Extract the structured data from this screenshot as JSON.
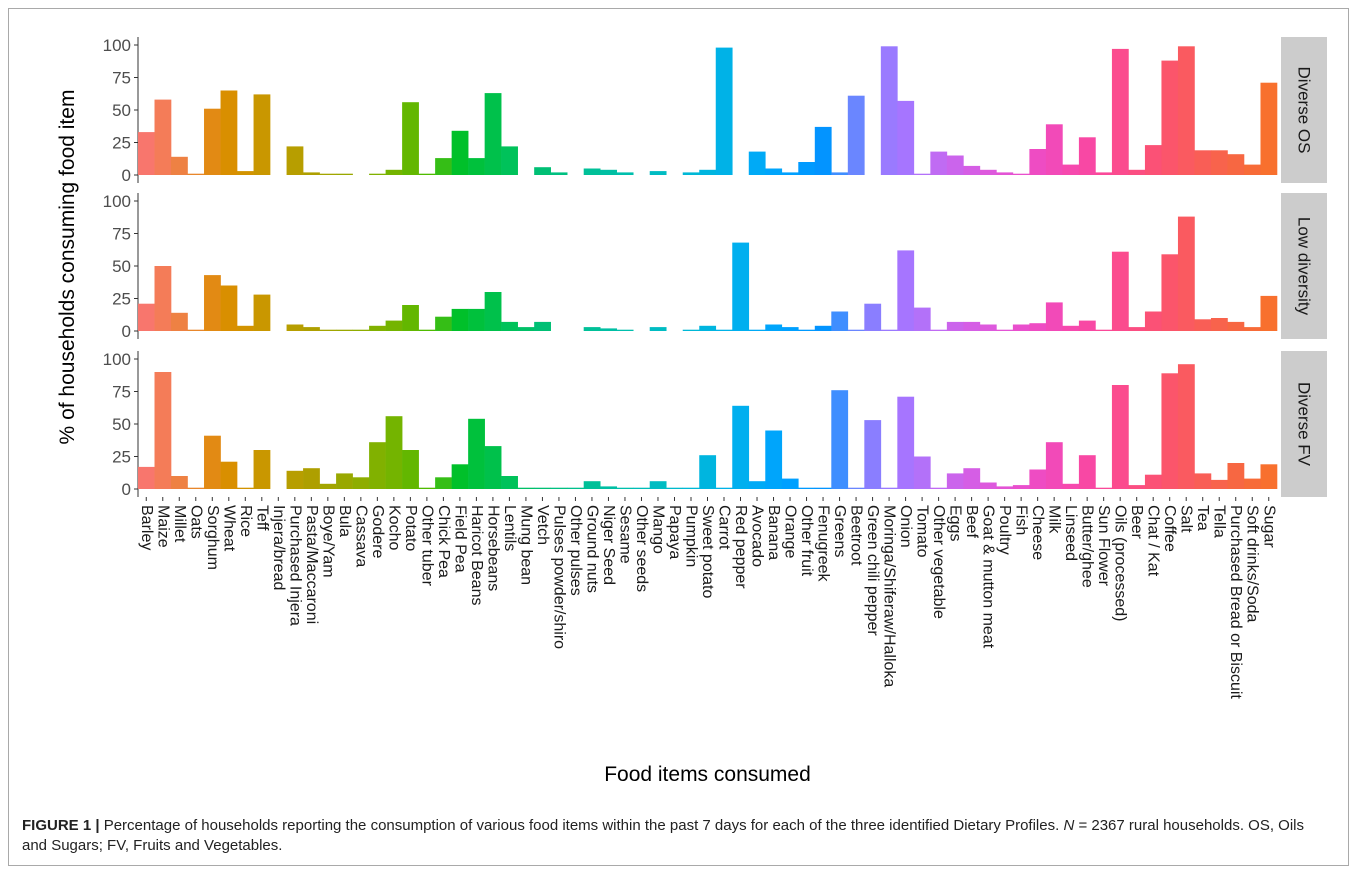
{
  "chart_data": {
    "type": "bar",
    "xlabel": "Food items consumed",
    "ylabel": "% of households consuming food item",
    "ylim": [
      0,
      100
    ],
    "yticks": [
      0,
      25,
      50,
      75,
      100
    ],
    "ytick_labels": [
      "0",
      "25",
      "50",
      "75",
      "100"
    ],
    "categories": [
      "Barley",
      "Maize",
      "Millet",
      "Oats",
      "Sorghum",
      "Wheat",
      "Rice",
      "Teff",
      "Injera/bread",
      "Purchased Injera",
      "Pasta/Maccaroni",
      "Boye/Yam",
      "Bula",
      "Cassava",
      "Godere",
      "Kocho",
      "Potato",
      "Other tuber",
      "Chick Pea",
      "Field Pea",
      "Haricot Beans",
      "Horsebeans",
      "Lentils",
      "Mung bean",
      "Vetch",
      "Pulses powder/shiro",
      "Other pulses",
      "Ground nuts",
      "Niger Seed",
      "Sesame",
      "Other seeds",
      "Mango",
      "Papaya",
      "Pumpkin",
      "Sweet potato",
      "Carrot",
      "Red pepper",
      "Avocado",
      "Banana",
      "Orange",
      "Other fruit",
      "Fenugreek",
      "Greens",
      "Beetroot",
      "Green chili pepper",
      "Moringa/Shiferaw/Halloka",
      "Onion",
      "Tomato",
      "Other vegetable",
      "Eggs",
      "Beef",
      "Goat & mutton meat",
      "Poultry",
      "Fish",
      "Cheese",
      "Milk",
      "Linseed",
      "Butter/ghee",
      "Sun Flower",
      "Oils (processed)",
      "Beer",
      "Chat / Kat",
      "Coffee",
      "Salt",
      "Tea",
      "Tella",
      "Purchased Bread or Biscuit",
      "Soft drinks/Soda",
      "Sugar"
    ],
    "colors": [
      "#f8766d",
      "#f47c58",
      "#ee8143",
      "#e8872c",
      "#e28a14",
      "#d98f00",
      "#d29300",
      "#c99700",
      "#c19a00",
      "#b79e00",
      "#ae9f00",
      "#a3a500",
      "#99a800",
      "#8ead00",
      "#81b100",
      "#74b400",
      "#63b700",
      "#4fbb00",
      "#35be16",
      "#00c02a",
      "#00c13c",
      "#00c14b",
      "#00c25a",
      "#00c067",
      "#00bf74",
      "#00c081",
      "#00c08d",
      "#00c098",
      "#00bfa3",
      "#00bfad",
      "#00bdb8",
      "#00bcc2",
      "#00bacc",
      "#00b8d6",
      "#00b5df",
      "#00b2e7",
      "#00afef",
      "#00aaf6",
      "#00a5fb",
      "#00a0ff",
      "#009aff",
      "#0394ff",
      "#3f8eff",
      "#6a86ff",
      "#8a7eff",
      "#9a7aff",
      "#a675ff",
      "#b371f9",
      "#c06bf3",
      "#cb64ec",
      "#d55ee5",
      "#dd59dd",
      "#e354d5",
      "#e94fcd",
      "#ee4cc3",
      "#f24ab8",
      "#f649ae",
      "#f848a4",
      "#fa4999",
      "#fb4b8e",
      "#fb4e82",
      "#fb5176",
      "#fb556b",
      "#fa5a60",
      "#f95e56",
      "#f8634c",
      "#f76742",
      "#f76b38",
      "#f8702e"
    ],
    "panels": [
      {
        "label": "Diverse OS",
        "values": [
          33,
          58,
          14,
          1,
          51,
          65,
          3,
          62,
          0,
          22,
          2,
          1,
          1,
          0,
          1,
          4,
          56,
          1,
          13,
          34,
          13,
          63,
          22,
          0,
          6,
          2,
          0,
          5,
          4,
          2,
          0,
          3,
          0,
          2,
          4,
          98,
          0,
          18,
          5,
          2,
          10,
          37,
          2,
          61,
          0,
          99,
          57,
          1,
          18,
          15,
          7,
          4,
          2,
          1,
          20,
          39,
          8,
          29,
          2,
          97,
          4,
          23,
          88,
          99,
          19,
          19,
          16,
          8,
          71
        ]
      },
      {
        "label": "Low diversity",
        "values": [
          21,
          50,
          14,
          1,
          43,
          35,
          4,
          28,
          0,
          5,
          3,
          1,
          1,
          1,
          4,
          8,
          20,
          1,
          11,
          17,
          17,
          30,
          7,
          3,
          7,
          0,
          0,
          3,
          2,
          1,
          0,
          3,
          0,
          1,
          4,
          1,
          68,
          1,
          5,
          3,
          1,
          4,
          15,
          1,
          21,
          1,
          62,
          18,
          1,
          7,
          7,
          5,
          1,
          5,
          6,
          22,
          4,
          8,
          1,
          61,
          3,
          15,
          59,
          88,
          9,
          10,
          7,
          3,
          27
        ]
      },
      {
        "label": "Diverse FV",
        "values": [
          17,
          90,
          10,
          1,
          41,
          21,
          1,
          30,
          0,
          14,
          16,
          4,
          12,
          9,
          36,
          56,
          30,
          1,
          9,
          19,
          54,
          33,
          10,
          1,
          1,
          1,
          1,
          6,
          2,
          1,
          1,
          6,
          1,
          1,
          26,
          1,
          64,
          6,
          45,
          8,
          1,
          1,
          76,
          1,
          53,
          1,
          71,
          25,
          1,
          12,
          16,
          5,
          2,
          3,
          15,
          36,
          4,
          26,
          1,
          80,
          3,
          11,
          89,
          96,
          12,
          7,
          20,
          8,
          19
        ]
      }
    ]
  },
  "caption": {
    "label": "FIGURE 1 |",
    "text_before_n": " Percentage of households reporting the consumption of various food items within the past 7 days for each of the three identified Dietary Profiles. ",
    "n_symbol": "N",
    "text_after_n": " = 2367 rural households. OS, Oils and Sugars; FV, Fruits and Vegetables."
  }
}
